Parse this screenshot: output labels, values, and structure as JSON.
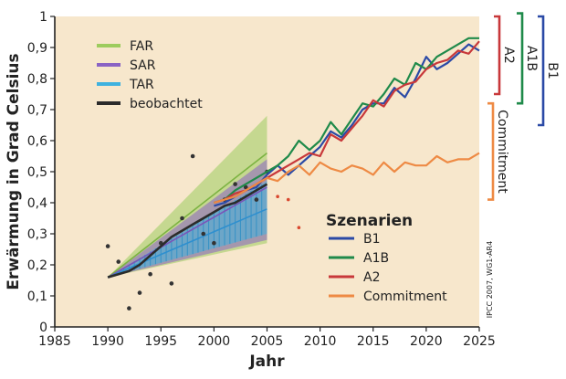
{
  "chart_data": {
    "type": "line",
    "title": "",
    "xlabel": "Jahr",
    "ylabel": "Erwärmung in Grad Celsius",
    "xlim": [
      1985,
      2025
    ],
    "ylim": [
      0,
      1
    ],
    "xticks": [
      "1985",
      "1990",
      "1995",
      "2000",
      "2005",
      "2010",
      "2015",
      "2020",
      "2025"
    ],
    "yticks": [
      "0",
      "0,1",
      "0,2",
      "0,3",
      "0,4",
      "0,5",
      "0,6",
      "0,7",
      "0,8",
      "0,9",
      "1"
    ],
    "grid": false,
    "background_color": "#f7e7cc",
    "legend_projections": {
      "items": [
        {
          "name": "FAR",
          "color": "#9dcc5e"
        },
        {
          "name": "SAR",
          "color": "#8a63c4"
        },
        {
          "name": "TAR",
          "color": "#3fb2df"
        },
        {
          "name": "beobachtet",
          "color": "#2b2b2b"
        }
      ],
      "position": "top-left"
    },
    "legend_scenarios": {
      "title": "Szenarien",
      "items": [
        {
          "name": "B1",
          "color": "#2b4aa6"
        },
        {
          "name": "A1B",
          "color": "#1f8a4a"
        },
        {
          "name": "A2",
          "color": "#c8383a"
        },
        {
          "name": "Commitment",
          "color": "#ee8a44"
        }
      ],
      "position": "lower-right"
    },
    "ranges": [
      {
        "name": "FAR",
        "color": "#9dcc5e",
        "x": [
          1990,
          2005
        ],
        "lower": [
          0.16,
          0.27
        ],
        "upper": [
          0.16,
          0.68
        ]
      },
      {
        "name": "SAR",
        "color": "#8a63c4",
        "x": [
          1990,
          2005
        ],
        "lower": [
          0.16,
          0.28
        ],
        "upper": [
          0.16,
          0.54
        ]
      },
      {
        "name": "TAR",
        "color": "#3fb2df",
        "x": [
          1990,
          2005
        ],
        "lower": [
          0.16,
          0.3
        ],
        "upper": [
          0.16,
          0.47
        ]
      }
    ],
    "central_lines": [
      {
        "name": "FAR",
        "x": [
          1990,
          2005
        ],
        "y": [
          0.16,
          0.56
        ]
      },
      {
        "name": "SAR",
        "x": [
          1990,
          2005
        ],
        "y": [
          0.16,
          0.45
        ]
      },
      {
        "name": "TAR",
        "x": [
          1990,
          2005
        ],
        "y": [
          0.16,
          0.38
        ]
      }
    ],
    "observed_points": [
      [
        1990,
        0.26
      ],
      [
        1991,
        0.21
      ],
      [
        1992,
        0.06
      ],
      [
        1993,
        0.11
      ],
      [
        1994,
        0.17
      ],
      [
        1995,
        0.27
      ],
      [
        1996,
        0.14
      ],
      [
        1997,
        0.35
      ],
      [
        1998,
        0.55
      ],
      [
        1999,
        0.3
      ],
      [
        2000,
        0.27
      ],
      [
        2001,
        0.41
      ],
      [
        2002,
        0.46
      ],
      [
        2003,
        0.45
      ],
      [
        2004,
        0.41
      ],
      [
        2005,
        0.5
      ],
      [
        2006,
        0.42
      ],
      [
        2007,
        0.41
      ],
      [
        2008,
        0.32
      ]
    ],
    "observed_smooth": {
      "x": [
        1990,
        1991,
        1992,
        1993,
        1994,
        1995,
        1996,
        1997,
        1998,
        1999,
        2000,
        2001,
        2002,
        2003,
        2004,
        2005
      ],
      "y": [
        0.16,
        0.17,
        0.18,
        0.2,
        0.23,
        0.26,
        0.29,
        0.31,
        0.33,
        0.35,
        0.37,
        0.39,
        0.4,
        0.42,
        0.44,
        0.46
      ]
    },
    "series": [
      {
        "name": "B1",
        "color": "#2b4aa6",
        "x": [
          2000,
          2001,
          2002,
          2003,
          2004,
          2005,
          2006,
          2007,
          2008,
          2009,
          2010,
          2011,
          2012,
          2013,
          2014,
          2015,
          2016,
          2017,
          2018,
          2019,
          2020,
          2021,
          2022,
          2023,
          2024,
          2025
        ],
        "y": [
          0.39,
          0.4,
          0.42,
          0.44,
          0.45,
          0.49,
          0.52,
          0.49,
          0.52,
          0.55,
          0.58,
          0.63,
          0.61,
          0.65,
          0.7,
          0.72,
          0.72,
          0.77,
          0.74,
          0.8,
          0.87,
          0.83,
          0.85,
          0.88,
          0.91,
          0.89
        ]
      },
      {
        "name": "A1B",
        "color": "#1f8a4a",
        "x": [
          2000,
          2001,
          2002,
          2003,
          2004,
          2005,
          2006,
          2007,
          2008,
          2009,
          2010,
          2011,
          2012,
          2013,
          2014,
          2015,
          2016,
          2017,
          2018,
          2019,
          2020,
          2021,
          2022,
          2023,
          2024,
          2025
        ],
        "y": [
          0.4,
          0.41,
          0.44,
          0.46,
          0.48,
          0.5,
          0.52,
          0.55,
          0.6,
          0.57,
          0.6,
          0.66,
          0.62,
          0.67,
          0.72,
          0.71,
          0.75,
          0.8,
          0.78,
          0.85,
          0.83,
          0.87,
          0.89,
          0.91,
          0.93,
          0.93
        ]
      },
      {
        "name": "A2",
        "color": "#c8383a",
        "x": [
          2000,
          2001,
          2002,
          2003,
          2004,
          2005,
          2006,
          2007,
          2008,
          2009,
          2010,
          2011,
          2012,
          2013,
          2014,
          2015,
          2016,
          2017,
          2018,
          2019,
          2020,
          2021,
          2022,
          2023,
          2024,
          2025
        ],
        "y": [
          0.4,
          0.41,
          0.43,
          0.44,
          0.46,
          0.48,
          0.5,
          0.52,
          0.54,
          0.56,
          0.55,
          0.62,
          0.6,
          0.64,
          0.68,
          0.73,
          0.71,
          0.76,
          0.78,
          0.79,
          0.83,
          0.85,
          0.86,
          0.89,
          0.88,
          0.92
        ]
      },
      {
        "name": "Commitment",
        "color": "#ee8a44",
        "x": [
          2000,
          2001,
          2002,
          2003,
          2004,
          2005,
          2006,
          2007,
          2008,
          2009,
          2010,
          2011,
          2012,
          2013,
          2014,
          2015,
          2016,
          2017,
          2018,
          2019,
          2020,
          2021,
          2022,
          2023,
          2024,
          2025
        ],
        "y": [
          0.4,
          0.41,
          0.42,
          0.44,
          0.46,
          0.48,
          0.47,
          0.5,
          0.52,
          0.49,
          0.53,
          0.51,
          0.5,
          0.52,
          0.51,
          0.49,
          0.53,
          0.5,
          0.53,
          0.52,
          0.52,
          0.55,
          0.53,
          0.54,
          0.54,
          0.56
        ]
      }
    ],
    "range_brackets": [
      {
        "name": "A2",
        "color": "#c8383a",
        "y": [
          0.75,
          1.0
        ]
      },
      {
        "name": "A1B",
        "color": "#1f8a4a",
        "y": [
          0.72,
          1.01
        ]
      },
      {
        "name": "B1",
        "color": "#2b4aa6",
        "y": [
          0.65,
          1.0
        ]
      },
      {
        "name": "Commitment",
        "color": "#ee8a44",
        "y": [
          0.41,
          0.72
        ]
      }
    ],
    "credit": "IPCC 2007, WG1-AR4"
  }
}
